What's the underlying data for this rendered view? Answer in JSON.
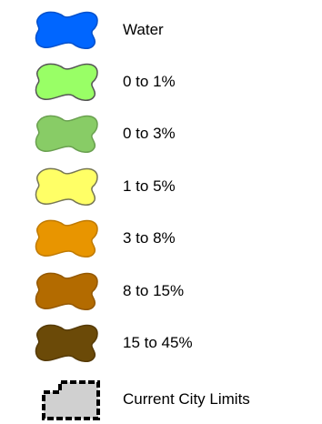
{
  "legend": {
    "items": [
      {
        "label": "Water",
        "fill": "#0066ff",
        "stroke": "#0050cc",
        "icon": "water-blob-icon"
      },
      {
        "label": "0 to 1%",
        "fill": "#99ff66",
        "stroke": "#555555",
        "icon": "slope-0-1-blob-icon"
      },
      {
        "label": "0 to 3%",
        "fill": "#88cc66",
        "stroke": "#6aa050",
        "icon": "slope-0-3-blob-icon"
      },
      {
        "label": "1 to 5%",
        "fill": "#ffff66",
        "stroke": "#777755",
        "icon": "slope-1-5-blob-icon"
      },
      {
        "label": "3 to 8%",
        "fill": "#e89500",
        "stroke": "#c07a00",
        "icon": "slope-3-8-blob-icon"
      },
      {
        "label": "8 to 15%",
        "fill": "#b36b00",
        "stroke": "#945800",
        "icon": "slope-8-15-blob-icon"
      },
      {
        "label": "15 to 45%",
        "fill": "#6b4a08",
        "stroke": "#553a06",
        "icon": "slope-15-45-blob-icon"
      },
      {
        "label": "Current City Limits",
        "fill": "#d0d0d0",
        "stroke": "#000000",
        "icon": "city-limits-icon"
      }
    ]
  }
}
